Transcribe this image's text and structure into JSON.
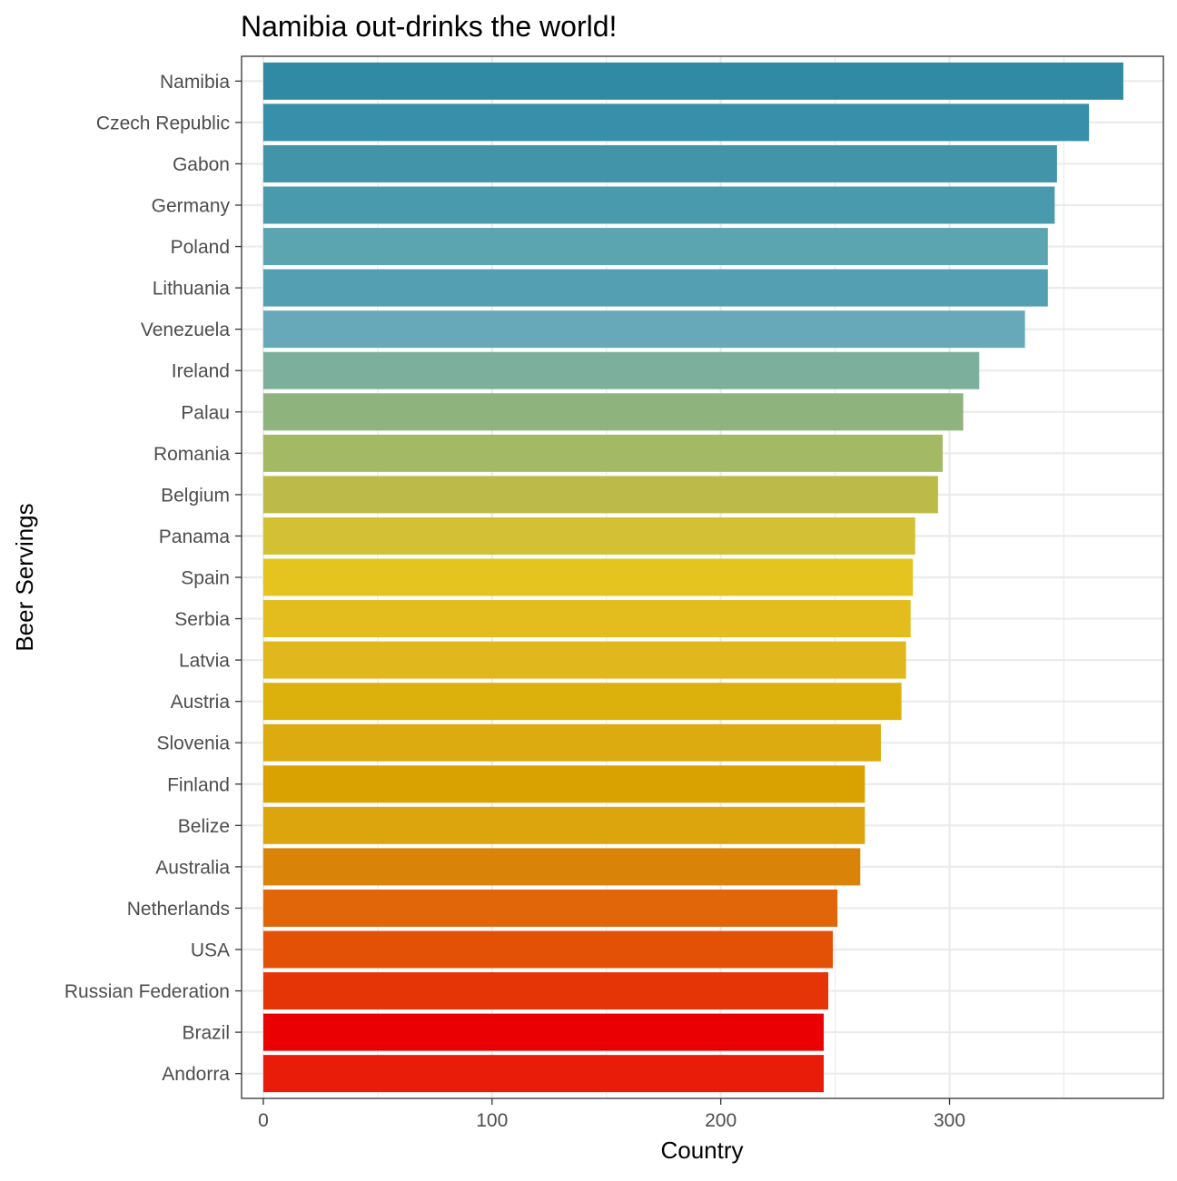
{
  "chart_data": {
    "type": "bar",
    "orientation": "horizontal",
    "title": "Namibia out-drinks the world!",
    "xlabel": "Country",
    "ylabel": "Beer Servings",
    "xlim": [
      -9.5,
      393.5
    ],
    "x_ticks": [
      0,
      100,
      200,
      300
    ],
    "grid": true,
    "legend": "none",
    "categories": [
      "Namibia",
      "Czech Republic",
      "Gabon",
      "Germany",
      "Poland",
      "Lithuania",
      "Venezuela",
      "Ireland",
      "Palau",
      "Romania",
      "Belgium",
      "Panama",
      "Spain",
      "Serbia",
      "Latvia",
      "Austria",
      "Slovenia",
      "Finland",
      "Belize",
      "Australia",
      "Netherlands",
      "USA",
      "Russian Federation",
      "Brazil",
      "Andorra"
    ],
    "values": [
      376,
      361,
      347,
      346,
      343,
      343,
      333,
      313,
      306,
      297,
      295,
      285,
      284,
      283,
      281,
      279,
      270,
      263,
      263,
      261,
      251,
      249,
      247,
      245,
      245
    ],
    "colors": [
      "#318aa4",
      "#378fa9",
      "#4295a9",
      "#4a9aae",
      "#5ba5b0",
      "#549fb2",
      "#67a9b8",
      "#7cb09c",
      "#8fb37d",
      "#a3b963",
      "#bcbb49",
      "#d3c033",
      "#e5c420",
      "#e2bd1d",
      "#e0b71c",
      "#ddb10b",
      "#dcab10",
      "#d9a200",
      "#dca50d",
      "#d98308",
      "#e1660a",
      "#e35107",
      "#e53507",
      "#ea0002",
      "#e81c08"
    ]
  }
}
